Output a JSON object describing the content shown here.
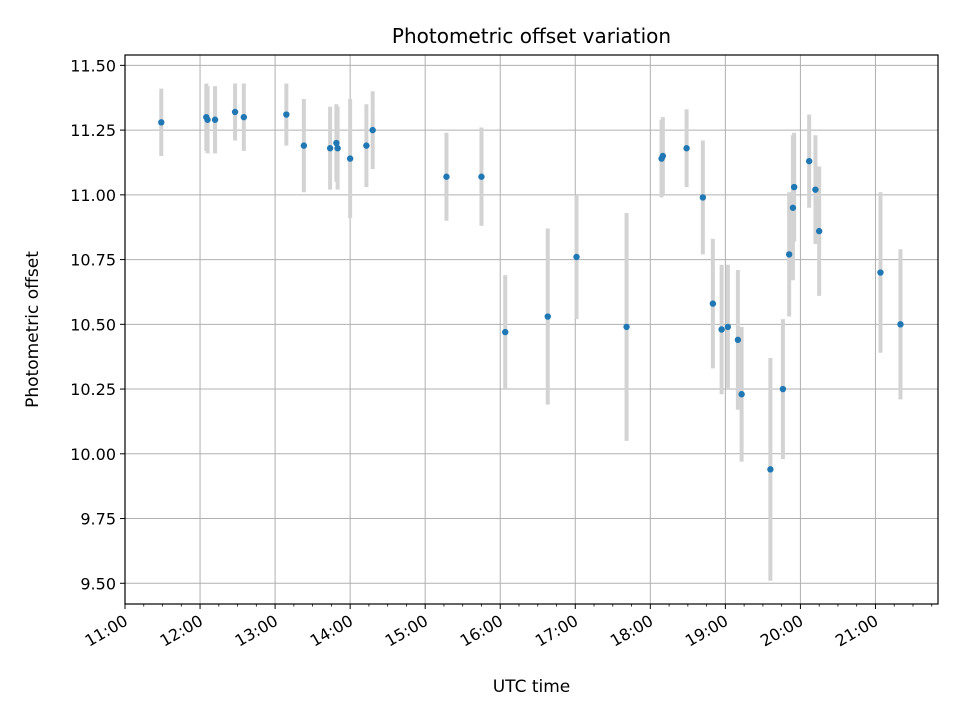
{
  "chart_data": {
    "type": "scatter",
    "title": "Photometric offset variation",
    "xlabel": "UTC time",
    "ylabel": "Photometric offset",
    "grid": true,
    "xlim": [
      "11:00",
      "21:50"
    ],
    "ylim": [
      9.42,
      11.54
    ],
    "x_ticks": [
      "11:00",
      "12:00",
      "13:00",
      "14:00",
      "15:00",
      "16:00",
      "17:00",
      "18:00",
      "19:00",
      "20:00",
      "21:00"
    ],
    "y_ticks": [
      "9.50",
      "9.75",
      "10.00",
      "10.25",
      "10.50",
      "10.75",
      "11.00",
      "11.25",
      "11.50"
    ],
    "colors": {
      "point": "#1f77b4",
      "errorbar": "#d3d3d3",
      "grid": "#b0b0b0"
    },
    "series": [
      {
        "points": [
          {
            "x": "11:29",
            "y": 11.28,
            "err": 0.13
          },
          {
            "x": "12:05",
            "y": 11.3,
            "err": 0.13
          },
          {
            "x": "12:06",
            "y": 11.29,
            "err": 0.13
          },
          {
            "x": "12:12",
            "y": 11.29,
            "err": 0.13
          },
          {
            "x": "12:28",
            "y": 11.32,
            "err": 0.11
          },
          {
            "x": "12:35",
            "y": 11.3,
            "err": 0.13
          },
          {
            "x": "13:09",
            "y": 11.31,
            "err": 0.12
          },
          {
            "x": "13:23",
            "y": 11.19,
            "err": 0.18
          },
          {
            "x": "13:44",
            "y": 11.18,
            "err": 0.16
          },
          {
            "x": "13:49",
            "y": 11.2,
            "err": 0.15
          },
          {
            "x": "13:50",
            "y": 11.18,
            "err": 0.16
          },
          {
            "x": "14:00",
            "y": 11.14,
            "err": 0.23
          },
          {
            "x": "14:13",
            "y": 11.19,
            "err": 0.16
          },
          {
            "x": "14:18",
            "y": 11.25,
            "err": 0.15
          },
          {
            "x": "15:17",
            "y": 11.07,
            "err": 0.17
          },
          {
            "x": "15:45",
            "y": 11.07,
            "err": 0.19
          },
          {
            "x": "16:04",
            "y": 10.47,
            "err": 0.22
          },
          {
            "x": "16:38",
            "y": 10.53,
            "err": 0.34
          },
          {
            "x": "17:01",
            "y": 10.76,
            "err": 0.24
          },
          {
            "x": "17:41",
            "y": 10.49,
            "err": 0.44
          },
          {
            "x": "18:09",
            "y": 11.14,
            "err": 0.15
          },
          {
            "x": "18:10",
            "y": 11.15,
            "err": 0.15
          },
          {
            "x": "18:29",
            "y": 11.18,
            "err": 0.15
          },
          {
            "x": "18:42",
            "y": 10.99,
            "err": 0.22
          },
          {
            "x": "18:50",
            "y": 10.58,
            "err": 0.25
          },
          {
            "x": "18:57",
            "y": 10.48,
            "err": 0.25
          },
          {
            "x": "19:02",
            "y": 10.49,
            "err": 0.24
          },
          {
            "x": "19:10",
            "y": 10.44,
            "err": 0.27
          },
          {
            "x": "19:13",
            "y": 10.23,
            "err": 0.26
          },
          {
            "x": "19:36",
            "y": 9.94,
            "err": 0.43
          },
          {
            "x": "19:46",
            "y": 10.25,
            "err": 0.27
          },
          {
            "x": "19:51",
            "y": 10.77,
            "err": 0.24
          },
          {
            "x": "19:54",
            "y": 10.95,
            "err": 0.28
          },
          {
            "x": "19:55",
            "y": 11.03,
            "err": 0.21
          },
          {
            "x": "20:07",
            "y": 11.13,
            "err": 0.18
          },
          {
            "x": "20:12",
            "y": 11.02,
            "err": 0.21
          },
          {
            "x": "20:15",
            "y": 10.86,
            "err": 0.25
          },
          {
            "x": "21:04",
            "y": 10.7,
            "err": 0.31
          },
          {
            "x": "21:20",
            "y": 10.5,
            "err": 0.29
          }
        ]
      }
    ]
  }
}
